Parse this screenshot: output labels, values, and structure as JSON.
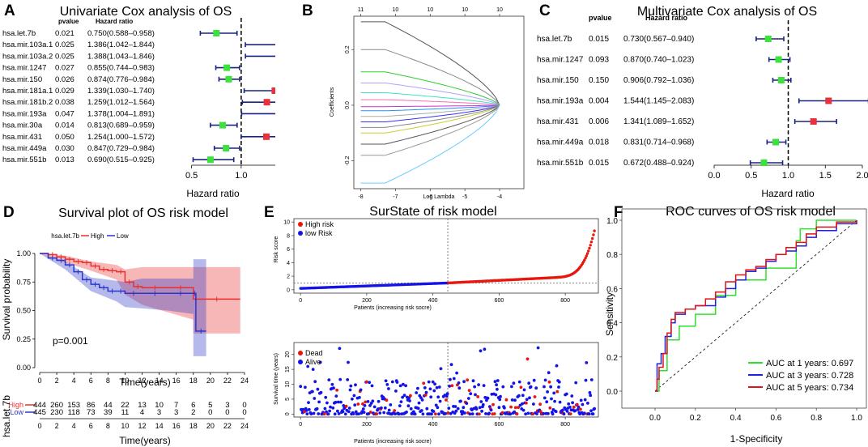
{
  "chart_data": [
    {
      "panel": "A",
      "type": "forest",
      "title": "Univariate Cox analysis of OS",
      "col_pvalue": "pvalue",
      "col_hr": "Hazard ratio",
      "xlabel": "Hazard ratio",
      "xticks": [
        "0.5",
        "1.0",
        "1.5"
      ],
      "xlim": [
        0.25,
        1.85
      ],
      "ref": 1.0,
      "rows": [
        {
          "gene": "hsa.let.7b",
          "p": "0.021",
          "hr_text": "0.750(0.588–0.958)",
          "hr": 0.75,
          "lo": 0.588,
          "hi": 0.958
        },
        {
          "gene": "hsa.mir.103a.1",
          "p": "0.025",
          "hr_text": "1.386(1.042–1.844)",
          "hr": 1.386,
          "lo": 1.042,
          "hi": 1.844
        },
        {
          "gene": "hsa.mir.103a.2",
          "p": "0.025",
          "hr_text": "1.388(1.043–1.846)",
          "hr": 1.388,
          "lo": 1.043,
          "hi": 1.846
        },
        {
          "gene": "hsa.mir.1247",
          "p": "0.027",
          "hr_text": "0.855(0.744–0.983)",
          "hr": 0.855,
          "lo": 0.744,
          "hi": 0.983
        },
        {
          "gene": "hsa.mir.150",
          "p": "0.026",
          "hr_text": "0.874(0.776–0.984)",
          "hr": 0.874,
          "lo": 0.776,
          "hi": 0.984
        },
        {
          "gene": "hsa.mir.181a.1",
          "p": "0.029",
          "hr_text": "1.339(1.030–1.740)",
          "hr": 1.339,
          "lo": 1.03,
          "hi": 1.74
        },
        {
          "gene": "hsa.mir.181b.2",
          "p": "0.038",
          "hr_text": "1.259(1.012–1.564)",
          "hr": 1.259,
          "lo": 1.012,
          "hi": 1.564
        },
        {
          "gene": "hsa.mir.193a",
          "p": "0.047",
          "hr_text": "1.378(1.004–1.891)",
          "hr": 1.378,
          "lo": 1.004,
          "hi": 1.891
        },
        {
          "gene": "hsa.mir.30a",
          "p": "0.014",
          "hr_text": "0.813(0.689–0.959)",
          "hr": 0.813,
          "lo": 0.689,
          "hi": 0.959
        },
        {
          "gene": "hsa.mir.431",
          "p": "0.050",
          "hr_text": "1.254(1.000–1.572)",
          "hr": 1.254,
          "lo": 1.0,
          "hi": 1.572
        },
        {
          "gene": "hsa.mir.449a",
          "p": "0.030",
          "hr_text": "0.847(0.729–0.984)",
          "hr": 0.847,
          "lo": 0.729,
          "hi": 0.984
        },
        {
          "gene": "hsa.mir.551b",
          "p": "0.013",
          "hr_text": "0.690(0.515–0.925)",
          "hr": 0.69,
          "lo": 0.515,
          "hi": 0.925
        }
      ]
    },
    {
      "panel": "B",
      "type": "line",
      "title": "",
      "xlabel": "Log Lambda",
      "ylabel": "Coefficients",
      "xticks": [
        "-8",
        "-7",
        "-6",
        "-5",
        "-4"
      ],
      "yticks": [
        "-0.2",
        "0.0",
        "0.2"
      ],
      "top_ticks": [
        "11",
        "10",
        "10",
        "10",
        "10"
      ],
      "xlim": [
        -8.2,
        -3.3
      ],
      "ylim": [
        -0.3,
        0.32
      ],
      "coefficients": [
        0.3,
        0.2,
        0.12,
        0.08,
        0.045,
        0.02,
        -0.005,
        -0.02,
        -0.04,
        -0.06,
        -0.08,
        -0.1,
        -0.14,
        -0.18,
        -0.28
      ],
      "series_colors": [
        "#555555",
        "#888888",
        "#32cd32",
        "#b0a0ff",
        "#40e0d0",
        "#ff69b4",
        "#cc33cc",
        "#1e90ff",
        "#aaaaaa",
        "#3333ff",
        "#888888",
        "#cccc33",
        "#555555",
        "#999999",
        "#66ccff"
      ]
    },
    {
      "panel": "C",
      "type": "forest",
      "title": "Multivariate Cox analysis of OS",
      "col_pvalue": "pvalue",
      "col_hr": "Hazard ratio",
      "xlabel": "Hazard ratio",
      "xticks": [
        "0.0",
        "0.5",
        "1.0",
        "1.5",
        "2.0"
      ],
      "xlim": [
        0.0,
        2.0
      ],
      "ref": 1.0,
      "rows": [
        {
          "gene": "hsa.let.7b",
          "p": "0.015",
          "hr_text": "0.730(0.567–0.940)",
          "hr": 0.73,
          "lo": 0.567,
          "hi": 0.94
        },
        {
          "gene": "hsa.mir.1247",
          "p": "0.093",
          "hr_text": "0.870(0.740–1.023)",
          "hr": 0.87,
          "lo": 0.74,
          "hi": 1.023
        },
        {
          "gene": "hsa.mir.150",
          "p": "0.150",
          "hr_text": "0.906(0.792–1.036)",
          "hr": 0.906,
          "lo": 0.792,
          "hi": 1.036
        },
        {
          "gene": "hsa.mir.193a",
          "p": "0.004",
          "hr_text": "1.544(1.145–2.083)",
          "hr": 1.544,
          "lo": 1.145,
          "hi": 2.083
        },
        {
          "gene": "hsa.mir.431",
          "p": "0.006",
          "hr_text": "1.341(1.089–1.652)",
          "hr": 1.341,
          "lo": 1.089,
          "hi": 1.652
        },
        {
          "gene": "hsa.mir.449a",
          "p": "0.018",
          "hr_text": "0.831(0.714–0.968)",
          "hr": 0.831,
          "lo": 0.714,
          "hi": 0.968
        },
        {
          "gene": "hsa.mir.551b",
          "p": "0.015",
          "hr_text": "0.672(0.488–0.924)",
          "hr": 0.672,
          "lo": 0.488,
          "hi": 0.924
        }
      ]
    },
    {
      "panel": "D",
      "type": "line",
      "title": "Survival plot of OS risk model",
      "legend_title": "hsa.let.7b",
      "legend": [
        "High",
        "Low"
      ],
      "ylabel": "Survival probability",
      "xlabel": "Time(years)",
      "xticks": [
        "0",
        "2",
        "4",
        "6",
        "8",
        "10",
        "12",
        "14",
        "16",
        "18",
        "20",
        "22",
        "24"
      ],
      "yticks": [
        "0.00",
        "0.25",
        "0.50",
        "0.75",
        "1.00"
      ],
      "xlim": [
        0,
        24
      ],
      "ylim": [
        0,
        1
      ],
      "pvalue_text": "p=0.001",
      "series": [
        {
          "name": "High",
          "color": "#e8312f",
          "x": [
            0,
            1,
            2,
            3,
            4,
            5,
            6,
            7,
            8,
            9,
            10,
            11,
            12,
            15,
            18,
            23.5
          ],
          "y": [
            1.0,
            0.99,
            0.97,
            0.95,
            0.93,
            0.92,
            0.89,
            0.86,
            0.85,
            0.84,
            0.75,
            0.71,
            0.7,
            0.7,
            0.6,
            0.6
          ]
        },
        {
          "name": "Low",
          "color": "#2b36c9",
          "x": [
            0,
            1,
            2,
            3,
            4,
            5,
            6,
            7,
            8,
            9,
            10,
            12,
            15,
            18,
            18.3,
            19.5
          ],
          "y": [
            1.0,
            0.96,
            0.94,
            0.9,
            0.84,
            0.77,
            0.73,
            0.7,
            0.67,
            0.67,
            0.65,
            0.65,
            0.65,
            0.65,
            0.32,
            0.32
          ]
        }
      ],
      "risk_table": {
        "row_label": "hsa.let.7b",
        "xlabel": "Time(years)",
        "rows": [
          {
            "name": "High",
            "color": "#e8312f",
            "values": [
              "444",
              "260",
              "153",
              "86",
              "44",
              "22",
              "13",
              "10",
              "7",
              "6",
              "5",
              "3",
              "0"
            ]
          },
          {
            "name": "Low",
            "color": "#2b36c9",
            "values": [
              "445",
              "230",
              "118",
              "73",
              "39",
              "11",
              "4",
              "3",
              "3",
              "2",
              "0",
              "0",
              "0"
            ]
          }
        ]
      }
    },
    {
      "panel": "E",
      "type": "scatter",
      "title": "SurState of risk model",
      "top": {
        "ylabel": "Risk score",
        "xlabel": "Patients (increasing risk socre)",
        "legend": [
          "High risk",
          "low Risk"
        ],
        "colors": [
          "#e8160c",
          "#1414e6"
        ],
        "xticks": [
          "0",
          "200",
          "400",
          "600",
          "800"
        ],
        "yticks": [
          "0",
          "2",
          "4",
          "6",
          "8",
          "10"
        ],
        "xlim": [
          -20,
          900
        ],
        "ylim": [
          -0.5,
          10.5
        ],
        "n": 889,
        "cutoff_patient": 445,
        "cutoff_score": 1.0
      },
      "bottom": {
        "ylabel": "Survival time (years)",
        "xlabel": "Patients (increasing risk socre)",
        "legend": [
          "Dead",
          "Alive"
        ],
        "colors": [
          "#e8160c",
          "#1414e6"
        ],
        "xticks": [
          "0",
          "200",
          "400",
          "600",
          "800"
        ],
        "yticks": [
          "0",
          "5",
          "10",
          "15",
          "20"
        ],
        "xlim": [
          -20,
          900
        ],
        "ylim": [
          -1,
          24
        ]
      }
    },
    {
      "panel": "F",
      "type": "line",
      "title": "ROC curves of OS risk model",
      "xlabel": "1-Specificity",
      "ylabel": "Sensitivity",
      "xticks": [
        "0.0",
        "0.2",
        "0.4",
        "0.6",
        "0.8",
        "1.0"
      ],
      "yticks": [
        "0.0",
        "0.2",
        "0.4",
        "0.6",
        "0.8",
        "1.0"
      ],
      "xlim": [
        0,
        1
      ],
      "ylim": [
        0,
        1
      ],
      "series": [
        {
          "name": "AUC at 1 years: 0.697",
          "color": "#2ee02e",
          "x": [
            0,
            0.02,
            0.02,
            0.06,
            0.06,
            0.1,
            0.12,
            0.2,
            0.2,
            0.3,
            0.3,
            0.4,
            0.4,
            0.5,
            0.55,
            0.6,
            0.7,
            0.72,
            0.8,
            0.8,
            0.9,
            0.95,
            1.0
          ],
          "y": [
            0,
            0,
            0.12,
            0.2,
            0.3,
            0.3,
            0.38,
            0.38,
            0.45,
            0.45,
            0.56,
            0.56,
            0.65,
            0.65,
            0.72,
            0.72,
            0.88,
            0.95,
            0.95,
            1.0,
            1.0,
            1.0,
            1.0
          ]
        },
        {
          "name": "AUC at 3 years: 0.728",
          "color": "#1f1fdd",
          "x": [
            0,
            0.01,
            0.01,
            0.03,
            0.05,
            0.08,
            0.1,
            0.15,
            0.2,
            0.25,
            0.3,
            0.35,
            0.4,
            0.45,
            0.5,
            0.55,
            0.6,
            0.65,
            0.7,
            0.75,
            0.8,
            0.9,
            1.0
          ],
          "y": [
            0,
            0.08,
            0.16,
            0.22,
            0.32,
            0.4,
            0.45,
            0.48,
            0.5,
            0.5,
            0.55,
            0.6,
            0.65,
            0.7,
            0.72,
            0.76,
            0.8,
            0.82,
            0.85,
            0.9,
            0.94,
            0.98,
            1.0
          ]
        },
        {
          "name": "AUC at 5 years: 0.734",
          "color": "#e01414",
          "x": [
            0,
            0.01,
            0.02,
            0.04,
            0.06,
            0.08,
            0.1,
            0.15,
            0.2,
            0.25,
            0.3,
            0.35,
            0.4,
            0.45,
            0.5,
            0.55,
            0.6,
            0.65,
            0.7,
            0.75,
            0.8,
            0.9,
            1.0
          ],
          "y": [
            0,
            0.07,
            0.14,
            0.22,
            0.34,
            0.42,
            0.46,
            0.48,
            0.5,
            0.54,
            0.58,
            0.64,
            0.68,
            0.71,
            0.73,
            0.77,
            0.8,
            0.84,
            0.87,
            0.92,
            0.96,
            0.99,
            1.0
          ]
        }
      ]
    }
  ]
}
